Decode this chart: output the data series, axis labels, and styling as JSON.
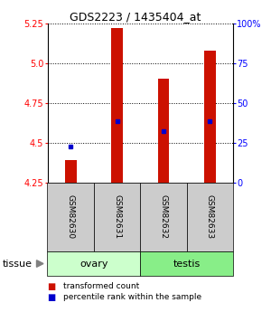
{
  "title": "GDS2223 / 1435404_at",
  "samples": [
    "GSM82630",
    "GSM82631",
    "GSM82632",
    "GSM82633"
  ],
  "red_values": [
    4.39,
    5.22,
    4.9,
    5.08
  ],
  "blue_values": [
    4.475,
    4.635,
    4.575,
    4.635
  ],
  "ylim_left": [
    4.25,
    5.25
  ],
  "ylim_right": [
    0,
    100
  ],
  "yticks_left": [
    4.25,
    4.5,
    4.75,
    5.0,
    5.25
  ],
  "yticks_right": [
    0,
    25,
    50,
    75,
    100
  ],
  "ytick_right_labels": [
    "0",
    "25",
    "50",
    "75",
    "100%"
  ],
  "groups": [
    {
      "label": "ovary",
      "samples": [
        0,
        1
      ],
      "color": "#ccffcc"
    },
    {
      "label": "testis",
      "samples": [
        2,
        3
      ],
      "color": "#88ee88"
    }
  ],
  "tissue_label": "tissue",
  "bar_color": "#cc1100",
  "dot_color": "#0000cc",
  "bar_width": 0.25,
  "background_color": "#ffffff",
  "sample_bg": "#cccccc",
  "title_fontsize": 9,
  "tick_fontsize": 7,
  "sample_fontsize": 6.5,
  "legend_fontsize": 6.5,
  "tissue_fontsize": 8
}
